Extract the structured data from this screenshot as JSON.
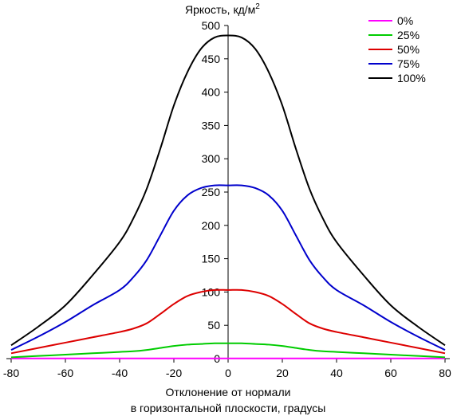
{
  "chart_data": {
    "type": "line",
    "title": "",
    "ylabel": "Яркость, кд/м",
    "ylabel_sup": "2",
    "xlabel_line1": "Отклонение от нормали",
    "xlabel_line2": "в горизонтальной плоскости, градусы",
    "xlim": [
      -80,
      80
    ],
    "ylim": [
      0,
      500
    ],
    "xticks": [
      -80,
      -60,
      -40,
      -20,
      0,
      20,
      40,
      60,
      80
    ],
    "yticks": [
      0,
      50,
      100,
      150,
      200,
      250,
      300,
      350,
      400,
      450,
      500
    ],
    "grid": false,
    "legend_position": "top-right",
    "x": [
      -80,
      -70,
      -60,
      -50,
      -40,
      -35,
      -30,
      -25,
      -20,
      -15,
      -10,
      -5,
      0,
      5,
      10,
      15,
      20,
      25,
      30,
      35,
      40,
      50,
      60,
      70,
      80
    ],
    "series": [
      {
        "name": "0%",
        "color": "#ff00ff",
        "values": [
          0.3,
          0.3,
          0.3,
          0.3,
          0.3,
          0.3,
          0.3,
          0.3,
          0.3,
          0.3,
          0.3,
          0.3,
          0.3,
          0.3,
          0.3,
          0.3,
          0.3,
          0.3,
          0.3,
          0.3,
          0.3,
          0.3,
          0.3,
          0.3,
          0.3
        ]
      },
      {
        "name": "25%",
        "color": "#00cc00",
        "values": [
          2,
          4,
          6,
          8,
          10,
          11,
          13,
          16,
          19,
          21,
          22,
          23,
          23,
          23,
          22,
          21,
          19,
          16,
          13,
          11,
          10,
          8,
          6,
          4,
          2
        ]
      },
      {
        "name": "50%",
        "color": "#dd0000",
        "values": [
          8,
          16,
          24,
          32,
          40,
          45,
          53,
          67,
          82,
          94,
          100,
          103,
          103,
          103,
          100,
          94,
          82,
          67,
          53,
          45,
          40,
          32,
          24,
          16,
          8
        ]
      },
      {
        "name": "75%",
        "color": "#0000cc",
        "values": [
          13,
          33,
          55,
          80,
          103,
          122,
          148,
          185,
          222,
          245,
          256,
          260,
          260,
          260,
          256,
          245,
          222,
          185,
          148,
          122,
          103,
          80,
          55,
          33,
          13
        ]
      },
      {
        "name": "100%",
        "color": "#000000",
        "values": [
          20,
          48,
          80,
          125,
          175,
          210,
          255,
          315,
          380,
          430,
          465,
          482,
          485,
          482,
          465,
          430,
          380,
          315,
          255,
          210,
          175,
          125,
          80,
          48,
          20
        ]
      }
    ]
  }
}
